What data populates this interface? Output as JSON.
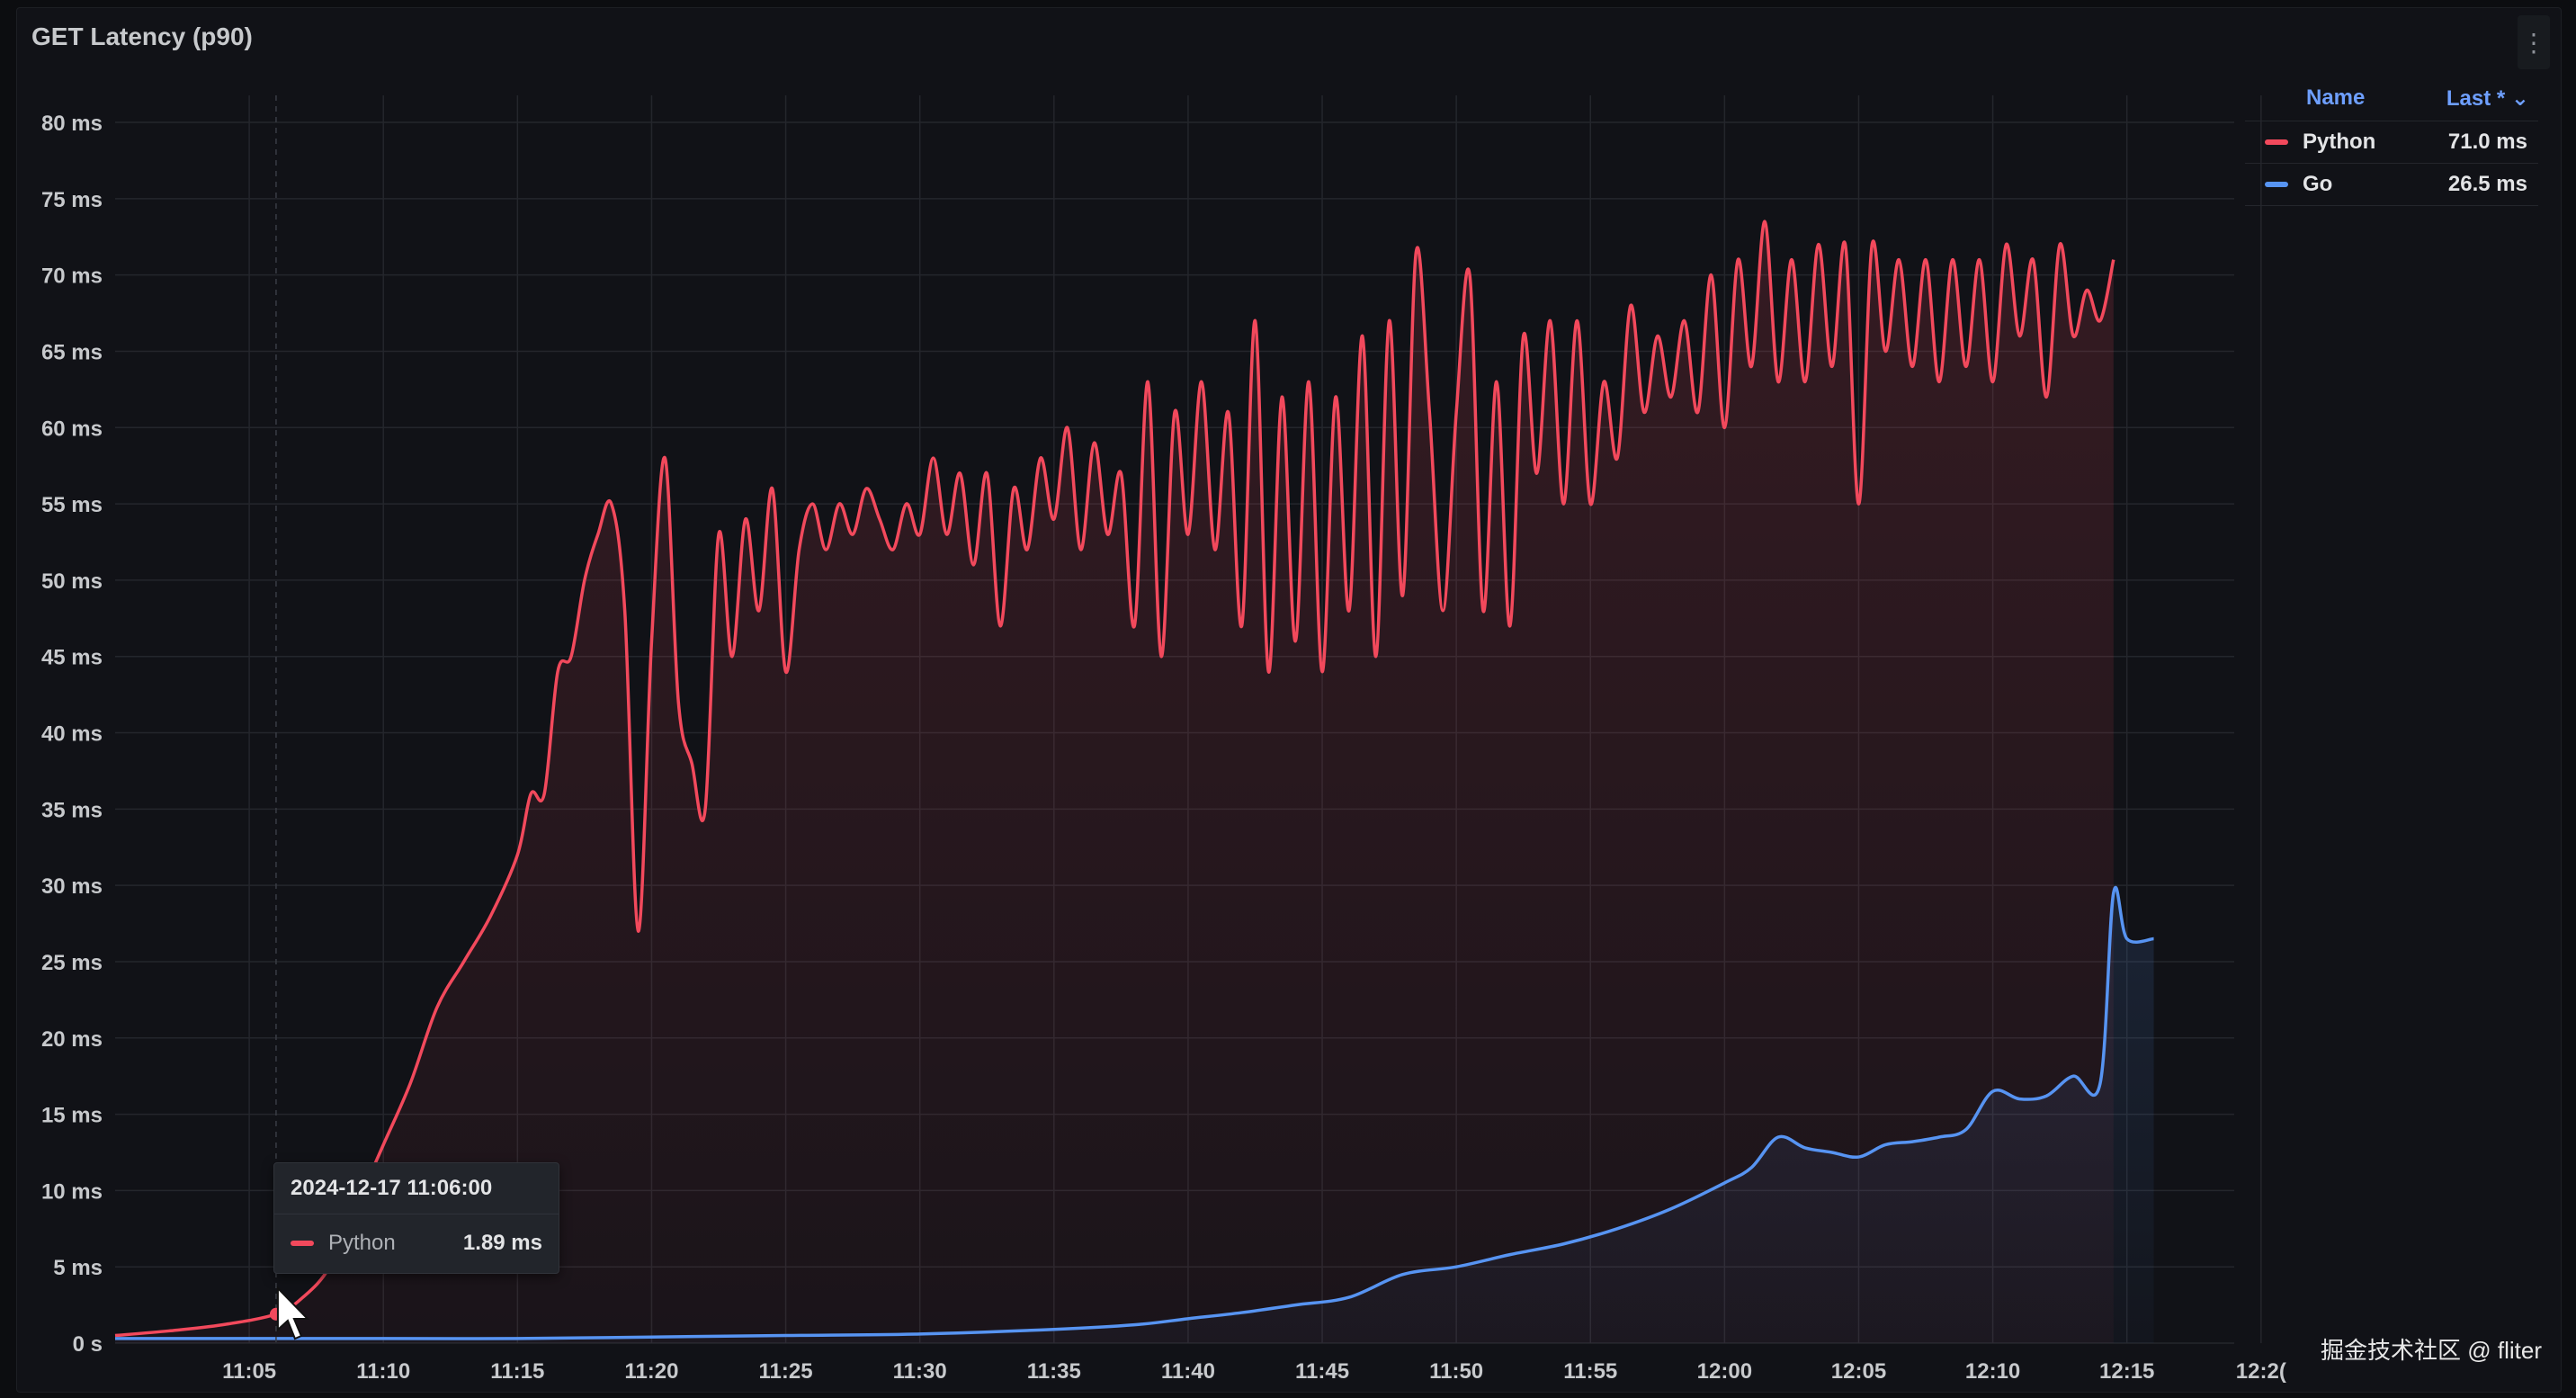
{
  "panel": {
    "title": "GET Latency (p90)"
  },
  "legend": {
    "name_header": "Name",
    "last_header": "Last * ⌄",
    "rows": [
      {
        "name": "Python",
        "value": "71.0 ms",
        "color": "#f2495c"
      },
      {
        "name": "Go",
        "value": "26.5 ms",
        "color": "#5794f2"
      }
    ]
  },
  "tooltip": {
    "time": "2024-12-17 11:06:00",
    "series": "Python",
    "value": "1.89 ms",
    "color": "#f2495c"
  },
  "watermark": "掘金技术社区 @ fliter",
  "chart_data": {
    "type": "line",
    "title": "GET Latency (p90)",
    "ylabel": "",
    "xlabel": "",
    "ylim": [
      0,
      80
    ],
    "xlim_minutes_since_11_00": [
      0,
      79
    ],
    "y_ticks": [
      "0 s",
      "5 ms",
      "10 ms",
      "15 ms",
      "20 ms",
      "25 ms",
      "30 ms",
      "35 ms",
      "40 ms",
      "45 ms",
      "50 ms",
      "55 ms",
      "60 ms",
      "65 ms",
      "70 ms",
      "75 ms",
      "80 ms"
    ],
    "x_ticks": [
      "11:05",
      "11:10",
      "11:15",
      "11:20",
      "11:25",
      "11:30",
      "11:35",
      "11:40",
      "11:45",
      "11:50",
      "11:55",
      "12:00",
      "12:05",
      "12:10",
      "12:15",
      "12:2("
    ],
    "grid": true,
    "legend_position": "right",
    "series": [
      {
        "name": "Python",
        "color": "#f2495c",
        "points": [
          [
            "11:00",
            0.5
          ],
          [
            "11:02",
            0.8
          ],
          [
            "11:04",
            1.2
          ],
          [
            "11:06",
            1.9
          ],
          [
            "11:07",
            3
          ],
          [
            "11:08",
            5
          ],
          [
            "11:09",
            9
          ],
          [
            "11:10",
            13
          ],
          [
            "11:11",
            17
          ],
          [
            "11:12",
            22
          ],
          [
            "11:13",
            25
          ],
          [
            "11:14",
            28
          ],
          [
            "11:15",
            32
          ],
          [
            "11:15.5",
            36
          ],
          [
            "11:16",
            36
          ],
          [
            "11:16.5",
            44
          ],
          [
            "11:17",
            45
          ],
          [
            "11:17.5",
            50
          ],
          [
            "11:18",
            53
          ],
          [
            "11:18.5",
            55
          ],
          [
            "11:19",
            48
          ],
          [
            "11:19.5",
            27
          ],
          [
            "11:20",
            46
          ],
          [
            "11:20.5",
            58
          ],
          [
            "11:21",
            42
          ],
          [
            "11:21.5",
            38
          ],
          [
            "11:22",
            35
          ],
          [
            "11:22.5",
            53
          ],
          [
            "11:23",
            45
          ],
          [
            "11:23.5",
            54
          ],
          [
            "11:24",
            48
          ],
          [
            "11:24.5",
            56
          ],
          [
            "11:25",
            44
          ],
          [
            "11:25.5",
            52
          ],
          [
            "11:26",
            55
          ],
          [
            "11:26.5",
            52
          ],
          [
            "11:27",
            55
          ],
          [
            "11:27.5",
            53
          ],
          [
            "11:28",
            56
          ],
          [
            "11:28.5",
            54
          ],
          [
            "11:29",
            52
          ],
          [
            "11:29.5",
            55
          ],
          [
            "11:30",
            53
          ],
          [
            "11:30.5",
            58
          ],
          [
            "11:31",
            53
          ],
          [
            "11:31.5",
            57
          ],
          [
            "11:32",
            51
          ],
          [
            "11:32.5",
            57
          ],
          [
            "11:33",
            47
          ],
          [
            "11:33.5",
            56
          ],
          [
            "11:34",
            52
          ],
          [
            "11:34.5",
            58
          ],
          [
            "11:35",
            54
          ],
          [
            "11:35.5",
            60
          ],
          [
            "11:36",
            52
          ],
          [
            "11:36.5",
            59
          ],
          [
            "11:37",
            53
          ],
          [
            "11:37.5",
            57
          ],
          [
            "11:38",
            47
          ],
          [
            "11:38.5",
            63
          ],
          [
            "11:39",
            45
          ],
          [
            "11:39.5",
            61
          ],
          [
            "11:40",
            53
          ],
          [
            "11:40.5",
            63
          ],
          [
            "11:41",
            52
          ],
          [
            "11:41.5",
            61
          ],
          [
            "11:42",
            47
          ],
          [
            "11:42.5",
            67
          ],
          [
            "11:43",
            44
          ],
          [
            "11:43.5",
            62
          ],
          [
            "11:44",
            46
          ],
          [
            "11:44.5",
            63
          ],
          [
            "11:45",
            44
          ],
          [
            "11:45.5",
            62
          ],
          [
            "11:46",
            48
          ],
          [
            "11:46.5",
            66
          ],
          [
            "11:47",
            45
          ],
          [
            "11:47.5",
            67
          ],
          [
            "11:48",
            49
          ],
          [
            "11:48.5",
            71.5
          ],
          [
            "11:49",
            61
          ],
          [
            "11:49.5",
            48
          ],
          [
            "11:50",
            61
          ],
          [
            "11:50.5",
            70
          ],
          [
            "11:51",
            48
          ],
          [
            "11:51.5",
            63
          ],
          [
            "11:52",
            47
          ],
          [
            "11:52.5",
            66
          ],
          [
            "11:53",
            57
          ],
          [
            "11:53.5",
            67
          ],
          [
            "11:54",
            55
          ],
          [
            "11:54.5",
            67
          ],
          [
            "11:55",
            55
          ],
          [
            "11:55.5",
            63
          ],
          [
            "11:56",
            58
          ],
          [
            "11:56.5",
            68
          ],
          [
            "11:57",
            61
          ],
          [
            "11:57.5",
            66
          ],
          [
            "11:58",
            62
          ],
          [
            "11:58.5",
            67
          ],
          [
            "11:59",
            61
          ],
          [
            "11:59.5",
            70
          ],
          [
            "12:00",
            60
          ],
          [
            "12:00.5",
            71
          ],
          [
            "12:01",
            64
          ],
          [
            "12:01.5",
            73.5
          ],
          [
            "12:02",
            63
          ],
          [
            "12:02.5",
            71
          ],
          [
            "12:03",
            63
          ],
          [
            "12:03.5",
            72
          ],
          [
            "12:04",
            64
          ],
          [
            "12:04.5",
            72
          ],
          [
            "12:05",
            55
          ],
          [
            "12:05.5",
            72
          ],
          [
            "12:06",
            65
          ],
          [
            "12:06.5",
            71
          ],
          [
            "12:07",
            64
          ],
          [
            "12:07.5",
            71
          ],
          [
            "12:08",
            63
          ],
          [
            "12:08.5",
            71
          ],
          [
            "12:09",
            64
          ],
          [
            "12:09.5",
            71
          ],
          [
            "12:10",
            63
          ],
          [
            "12:10.5",
            72
          ],
          [
            "12:11",
            66
          ],
          [
            "12:11.5",
            71
          ],
          [
            "12:12",
            62
          ],
          [
            "12:12.5",
            72
          ],
          [
            "12:13",
            66
          ],
          [
            "12:13.5",
            69
          ],
          [
            "12:14",
            67
          ],
          [
            "12:14.5",
            71
          ]
        ]
      },
      {
        "name": "Go",
        "color": "#5794f2",
        "points": [
          [
            "11:00",
            0.3
          ],
          [
            "11:10",
            0.3
          ],
          [
            "11:15",
            0.3
          ],
          [
            "11:20",
            0.4
          ],
          [
            "11:25",
            0.5
          ],
          [
            "11:30",
            0.6
          ],
          [
            "11:35",
            0.9
          ],
          [
            "11:38",
            1.2
          ],
          [
            "11:40",
            1.6
          ],
          [
            "11:42",
            2.0
          ],
          [
            "11:44",
            2.5
          ],
          [
            "11:46",
            3.0
          ],
          [
            "11:48",
            4.5
          ],
          [
            "11:50",
            5.0
          ],
          [
            "11:52",
            5.8
          ],
          [
            "11:54",
            6.5
          ],
          [
            "11:56",
            7.5
          ],
          [
            "11:58",
            8.8
          ],
          [
            "12:00",
            10.5
          ],
          [
            "12:01",
            11.5
          ],
          [
            "12:02",
            13.5
          ],
          [
            "12:03",
            12.8
          ],
          [
            "12:04",
            12.5
          ],
          [
            "12:05",
            12.2
          ],
          [
            "12:06",
            13.0
          ],
          [
            "12:07",
            13.2
          ],
          [
            "12:08",
            13.5
          ],
          [
            "12:09",
            14.0
          ],
          [
            "12:10",
            16.5
          ],
          [
            "12:11",
            16.0
          ],
          [
            "12:12",
            16.2
          ],
          [
            "12:13",
            17.5
          ],
          [
            "12:14",
            17.0
          ],
          [
            "12:14.5",
            29.5
          ],
          [
            "12:15",
            26.5
          ],
          [
            "12:16",
            26.5
          ]
        ]
      }
    ]
  }
}
